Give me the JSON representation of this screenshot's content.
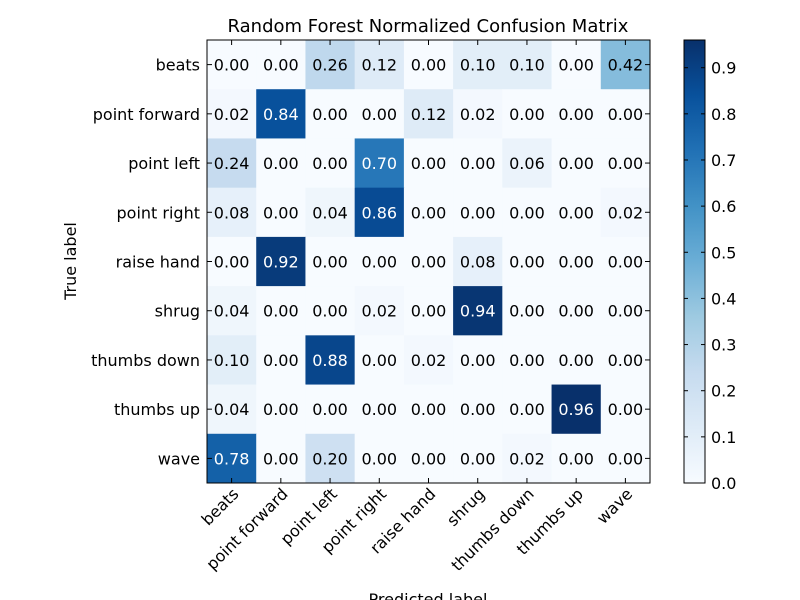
{
  "chart_data": {
    "type": "heatmap",
    "title": "Random Forest Normalized Confusion Matrix",
    "xlabel": "Predicted label",
    "ylabel": "True label",
    "row_labels": [
      "beats",
      "point forward",
      "point left",
      "point right",
      "raise hand",
      "shrug",
      "thumbs down",
      "thumbs up",
      "wave"
    ],
    "col_labels": [
      "beats",
      "point forward",
      "point left",
      "point right",
      "raise hand",
      "shrug",
      "thumbs down",
      "thumbs up",
      "wave"
    ],
    "values": [
      [
        0.0,
        0.0,
        0.26,
        0.12,
        0.0,
        0.1,
        0.1,
        0.0,
        0.42
      ],
      [
        0.02,
        0.84,
        0.0,
        0.0,
        0.12,
        0.02,
        0.0,
        0.0,
        0.0
      ],
      [
        0.24,
        0.0,
        0.0,
        0.7,
        0.0,
        0.0,
        0.06,
        0.0,
        0.0
      ],
      [
        0.08,
        0.0,
        0.04,
        0.86,
        0.0,
        0.0,
        0.0,
        0.0,
        0.02
      ],
      [
        0.0,
        0.92,
        0.0,
        0.0,
        0.0,
        0.08,
        0.0,
        0.0,
        0.0
      ],
      [
        0.04,
        0.0,
        0.0,
        0.02,
        0.0,
        0.94,
        0.0,
        0.0,
        0.0
      ],
      [
        0.1,
        0.0,
        0.88,
        0.0,
        0.02,
        0.0,
        0.0,
        0.0,
        0.0
      ],
      [
        0.04,
        0.0,
        0.0,
        0.0,
        0.0,
        0.0,
        0.0,
        0.96,
        0.0
      ],
      [
        0.78,
        0.0,
        0.2,
        0.0,
        0.0,
        0.0,
        0.02,
        0.0,
        0.0
      ]
    ],
    "colormap": "Blues",
    "colorbar": {
      "range": [
        0.0,
        0.96
      ],
      "ticks": [
        0.0,
        0.1,
        0.2,
        0.3,
        0.4,
        0.5,
        0.6,
        0.7,
        0.8,
        0.9
      ]
    },
    "grid": false
  }
}
